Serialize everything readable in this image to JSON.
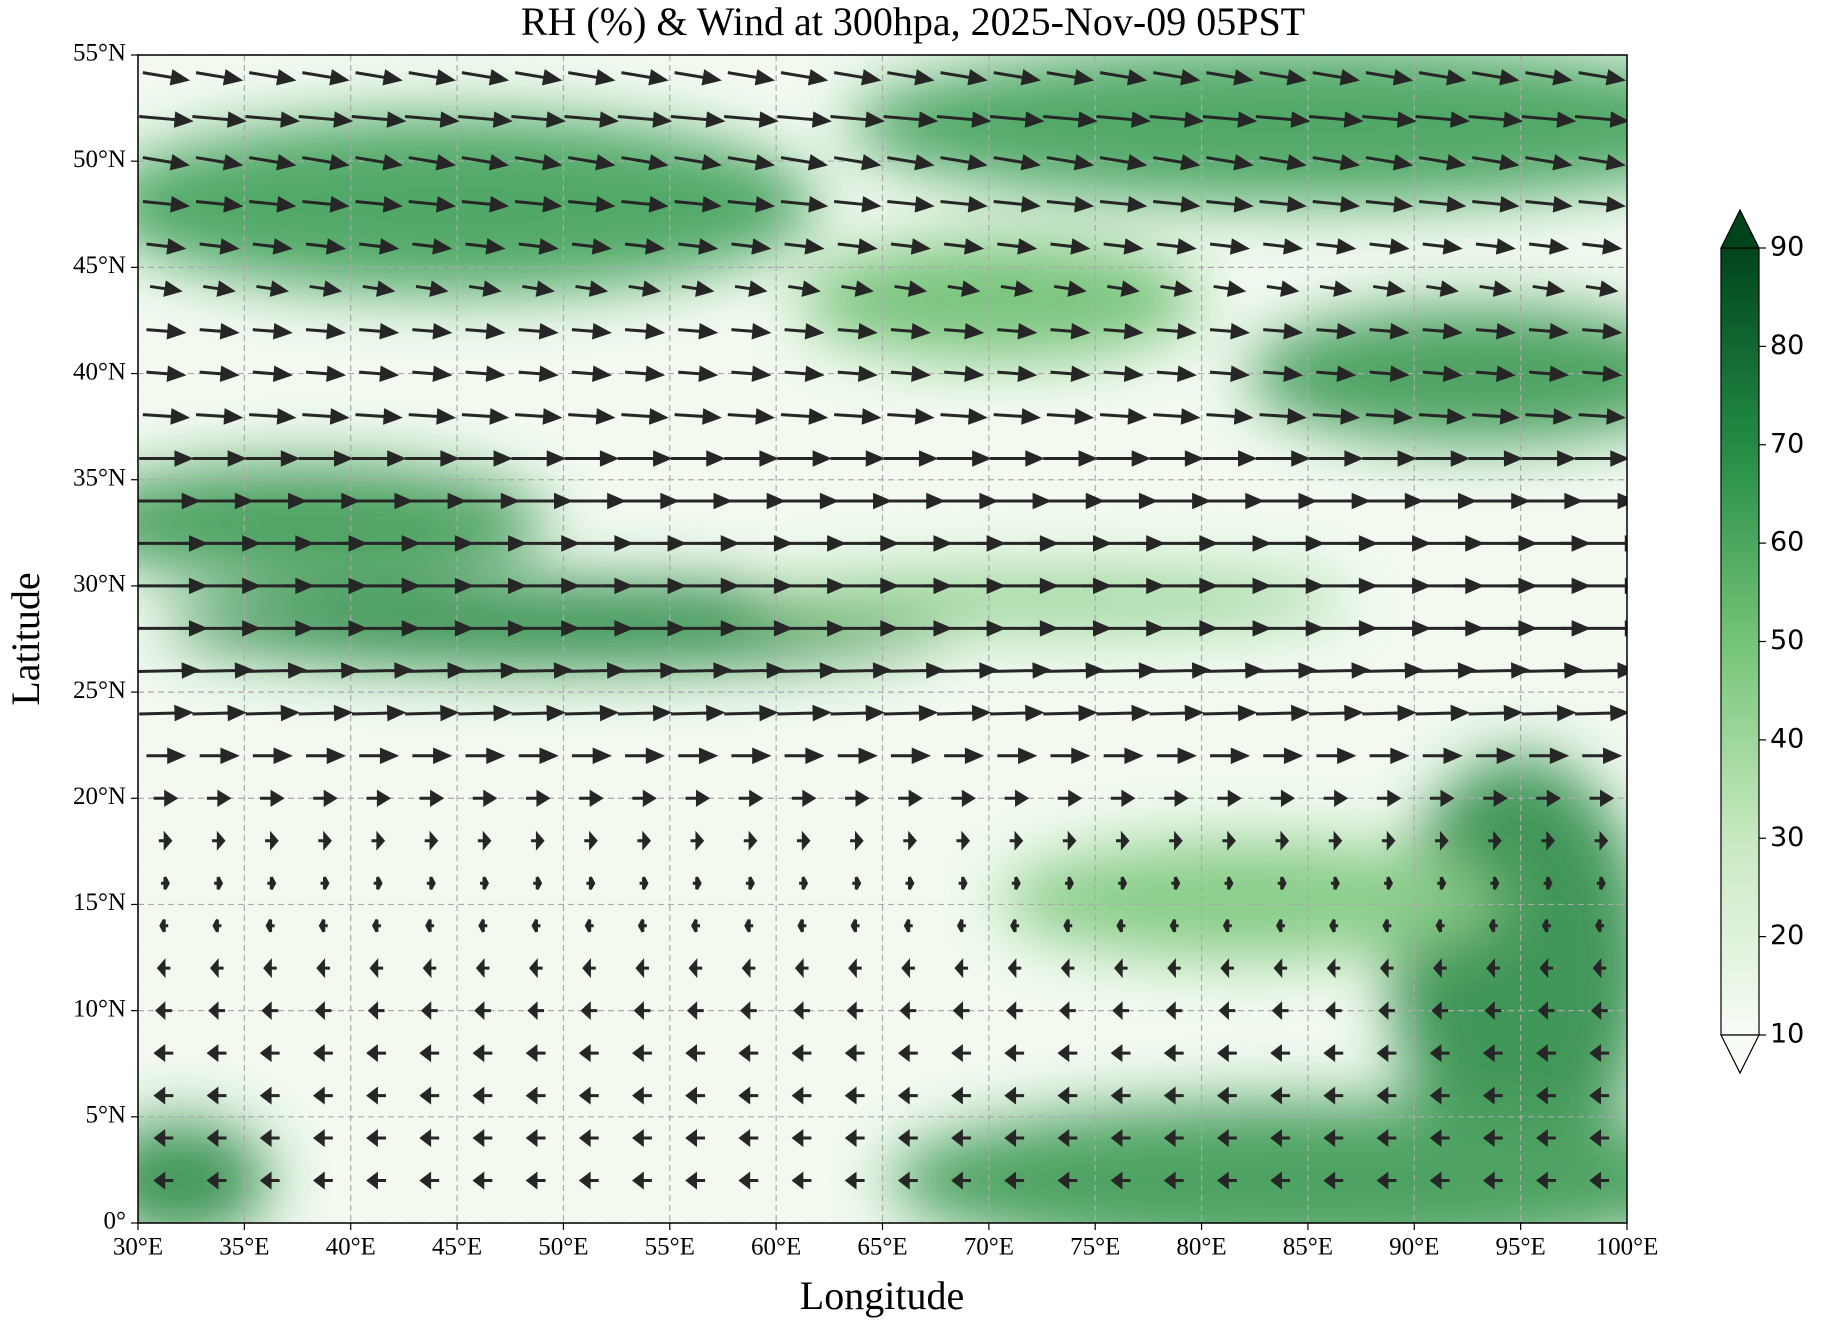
{
  "chart_data": {
    "type": "map",
    "title": "RH (%) & Wind at 300hpa, 2025-Nov-09 05PST",
    "xlabel": "Longitude",
    "ylabel": "Latitude",
    "xlim": [
      30,
      100
    ],
    "ylim": [
      0,
      55
    ],
    "xticks": [
      {
        "value": 30,
        "label": "30°E"
      },
      {
        "value": 35,
        "label": "35°E"
      },
      {
        "value": 40,
        "label": "40°E"
      },
      {
        "value": 45,
        "label": "45°E"
      },
      {
        "value": 50,
        "label": "50°E"
      },
      {
        "value": 55,
        "label": "55°E"
      },
      {
        "value": 60,
        "label": "60°E"
      },
      {
        "value": 65,
        "label": "65°E"
      },
      {
        "value": 70,
        "label": "70°E"
      },
      {
        "value": 75,
        "label": "75°E"
      },
      {
        "value": 80,
        "label": "80°E"
      },
      {
        "value": 85,
        "label": "85°E"
      },
      {
        "value": 90,
        "label": "90°E"
      },
      {
        "value": 95,
        "label": "95°E"
      },
      {
        "value": 100,
        "label": "100°E"
      }
    ],
    "yticks": [
      {
        "value": 0,
        "label": "0°"
      },
      {
        "value": 5,
        "label": "5°N"
      },
      {
        "value": 10,
        "label": "10°N"
      },
      {
        "value": 15,
        "label": "15°N"
      },
      {
        "value": 20,
        "label": "20°N"
      },
      {
        "value": 25,
        "label": "25°N"
      },
      {
        "value": 30,
        "label": "30°N"
      },
      {
        "value": 35,
        "label": "35°N"
      },
      {
        "value": 40,
        "label": "40°N"
      },
      {
        "value": 45,
        "label": "45°N"
      },
      {
        "value": 50,
        "label": "50°N"
      },
      {
        "value": 55,
        "label": "55°N"
      }
    ],
    "grid": true,
    "wind_color": "#262626",
    "wind": {
      "lat": [
        54,
        52,
        50,
        48,
        46,
        44,
        42,
        40,
        38,
        36,
        34,
        32,
        30,
        28,
        26,
        24,
        22,
        20,
        18,
        16,
        14,
        12,
        10,
        8,
        6,
        4,
        2
      ],
      "u": [
        30,
        35,
        30,
        30,
        25,
        20,
        25,
        25,
        30,
        35,
        45,
        55,
        55,
        55,
        45,
        35,
        25,
        15,
        8,
        5,
        -5,
        -8,
        -10,
        -12,
        -12,
        -12,
        -12
      ],
      "v": [
        -5,
        -3,
        -5,
        -3,
        -3,
        -3,
        -2,
        -2,
        -2,
        0,
        0,
        0,
        0,
        0,
        1,
        1,
        0,
        0,
        0,
        0,
        0,
        0,
        0,
        0,
        0,
        0,
        0
      ]
    },
    "colorbar": {
      "lim": [
        10,
        90
      ],
      "ticks": [
        10,
        20,
        30,
        40,
        50,
        60,
        70,
        80,
        90
      ]
    }
  }
}
